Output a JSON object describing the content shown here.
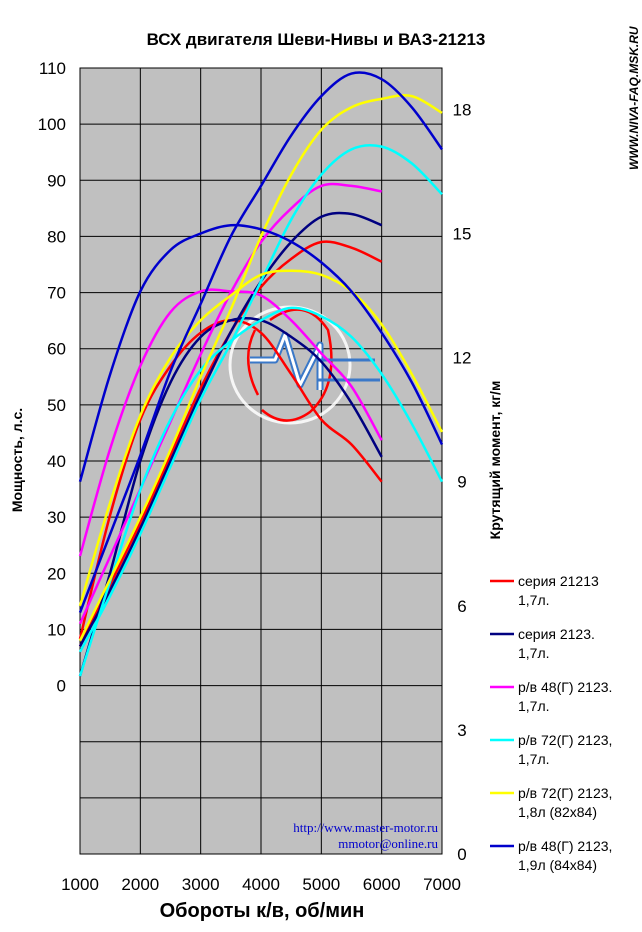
{
  "chart_data": {
    "type": "line",
    "title": "ВСХ двигателя Шеви-Нивы и ВАЗ-21213",
    "xlabel": "Обороты к/в, об/мин",
    "ylabel_left": "Мощность, л.с.",
    "ylabel_right": "Крутящий момент, кг/м",
    "xlim": [
      1000,
      7000
    ],
    "ylim_left": [
      -30,
      110
    ],
    "ylim_right": [
      0,
      19
    ],
    "x_ticks": [
      "1000",
      "2000",
      "3000",
      "4000",
      "5000",
      "6000",
      "7000"
    ],
    "y_ticks_left": [
      "0",
      "10",
      "20",
      "30",
      "40",
      "50",
      "60",
      "70",
      "80",
      "90",
      "100",
      "110"
    ],
    "y_ticks_right": [
      "0",
      "3",
      "6",
      "9",
      "12",
      "15",
      "18"
    ],
    "grid": true,
    "legend_position": "right",
    "plot_background": "#c0c0c0",
    "series": [
      {
        "name": "серия 21213",
        "name_line2": "1,7л.",
        "color": "#ff0000",
        "power": {
          "x": [
            1000,
            1500,
            2000,
            2500,
            3000,
            3500,
            4000,
            4500,
            5000,
            5500,
            6000
          ],
          "y": [
            7,
            18,
            29,
            41,
            53,
            63,
            71,
            76,
            79,
            78,
            75.5
          ]
        },
        "torque": {
          "x": [
            1000,
            1500,
            2000,
            2500,
            3000,
            3500,
            4000,
            4500,
            5000,
            5500,
            6000
          ],
          "y": [
            5.2,
            8.2,
            10.5,
            11.8,
            12.6,
            12.9,
            12.6,
            11.6,
            10.5,
            9.9,
            9.0
          ]
        }
      },
      {
        "name": "серия 2123.",
        "name_line2": "1,7л.",
        "color": "#000080",
        "power": {
          "x": [
            1000,
            1500,
            2000,
            2500,
            3000,
            3500,
            4000,
            4500,
            5000,
            5500,
            6000
          ],
          "y": [
            7,
            17,
            28,
            40,
            52,
            63,
            72,
            79,
            83.5,
            84,
            82
          ]
        },
        "torque": {
          "x": [
            1000,
            1500,
            2000,
            2500,
            3000,
            3500,
            4000,
            4500,
            5000,
            5500,
            6000
          ],
          "y": [
            4.3,
            6.8,
            9.5,
            11.4,
            12.5,
            12.9,
            12.9,
            12.5,
            11.9,
            10.9,
            9.6
          ]
        }
      },
      {
        "name": "р/в 48(Г) 2123.",
        "name_line2": "1,7л.",
        "color": "#ff00ff",
        "power": {
          "x": [
            1000,
            1500,
            2000,
            2500,
            3000,
            3500,
            4000,
            4500,
            5000,
            5500,
            6000
          ],
          "y": [
            11,
            23,
            35,
            47,
            59,
            70,
            79,
            85,
            89,
            89,
            88
          ]
        },
        "torque": {
          "x": [
            1000,
            1500,
            2000,
            2500,
            3000,
            3500,
            4000,
            4500,
            5000,
            5500,
            6000
          ],
          "y": [
            7.2,
            9.8,
            11.8,
            13.1,
            13.6,
            13.6,
            13.5,
            12.9,
            12.1,
            11.3,
            10.0
          ]
        }
      },
      {
        "name": "р/в 72(Г) 2123,",
        "name_line2": "1,7л.",
        "color": "#00ffff",
        "power": {
          "x": [
            1000,
            1500,
            2000,
            2500,
            3000,
            3500,
            4000,
            4500,
            5000,
            5500,
            6000,
            6500,
            7000
          ],
          "y": [
            6,
            16,
            27,
            39,
            51,
            61,
            72,
            83,
            91,
            95.5,
            96,
            93,
            87.5
          ]
        },
        "torque": {
          "x": [
            1000,
            1500,
            2000,
            2500,
            3000,
            3500,
            4000,
            4500,
            5000,
            5500,
            6000,
            6500,
            7000
          ],
          "y": [
            4.3,
            6.6,
            8.8,
            10.5,
            11.7,
            12.4,
            12.9,
            13.2,
            13.0,
            12.5,
            11.6,
            10.4,
            9.0
          ]
        }
      },
      {
        "name": "р/в 72(Г) 2123,",
        "name_line2": "1,8л (82х84)",
        "color": "#ffff00",
        "power": {
          "x": [
            1000,
            1500,
            2000,
            2500,
            3000,
            3500,
            4000,
            4500,
            5000,
            5500,
            6000,
            6500,
            7000
          ],
          "y": [
            8,
            19,
            30,
            42,
            55,
            67,
            80,
            91,
            99,
            103,
            104.5,
            105,
            102
          ]
        },
        "torque": {
          "x": [
            1000,
            1500,
            2000,
            2500,
            3000,
            3500,
            4000,
            4500,
            5000,
            5500,
            6000,
            6500,
            7000
          ],
          "y": [
            6.0,
            8.5,
            10.6,
            12.0,
            12.9,
            13.5,
            14.0,
            14.1,
            14.0,
            13.6,
            12.8,
            11.6,
            10.2
          ]
        }
      },
      {
        "name": "р/в 48(Г) 2123,",
        "name_line2": "1,9л (84х84)",
        "color": "#0000cc",
        "power": {
          "x": [
            1000,
            1500,
            2000,
            2500,
            3000,
            3500,
            4000,
            4500,
            5000,
            5500,
            6000,
            6500,
            7000
          ],
          "y": [
            13,
            27,
            41,
            56,
            68,
            80,
            89,
            98,
            105,
            109,
            108,
            103,
            95.5
          ]
        },
        "torque": {
          "x": [
            1000,
            1500,
            2000,
            2500,
            3000,
            3500,
            4000,
            4500,
            5000,
            5500,
            6000,
            6500,
            7000
          ],
          "y": [
            9.0,
            11.6,
            13.6,
            14.6,
            15.0,
            15.2,
            15.1,
            14.8,
            14.3,
            13.6,
            12.6,
            11.4,
            9.9
          ]
        }
      }
    ],
    "watermark_text": [
      "http://www.master-motor.ru",
      "mmotor@online.ru"
    ],
    "site_label": "WWW.NIVA-FAQ.MSK.RU"
  }
}
